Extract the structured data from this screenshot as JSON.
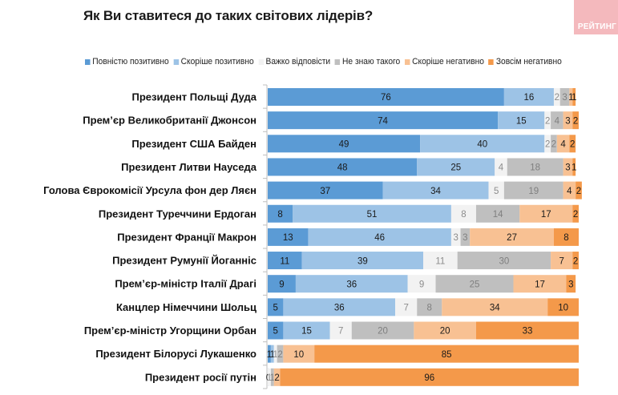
{
  "header": {
    "title": "Як Ви ставитеся до таких світових лідерів?",
    "logo_text": "РЕЙТИНГ"
  },
  "chart_data": {
    "type": "bar",
    "orientation": "horizontal",
    "stacked": true,
    "title": "Як Ви ставитеся до таких світових лідерів?",
    "xlabel": "",
    "ylabel": "",
    "xlim": [
      0,
      100
    ],
    "grid": false,
    "legend_position": "top",
    "categories": [
      "Президент Польщі Дуда",
      "Прем’єр Великобританії Джонсон",
      "Президент США Байден",
      "Президент Литви Науседа",
      "Голова Єврокомісії Урсула фон дер Ляєн",
      "Президент Туреччини Ердоган",
      "Президент Франції Макрон",
      "Президент Румунії Йоганніс",
      "Прем’єр-міністр Італії Драгі",
      "Канцлер Німеччини Шольц",
      "Прем’єр-міністр Угорщини Орбан",
      "Президент Білорусі Лукашенко",
      "Президент росії путін"
    ],
    "series": [
      {
        "name": "Повністю позитивно",
        "color": "#5b9bd5",
        "label_color": "#1a1a1a",
        "values": [
          76,
          74,
          49,
          48,
          37,
          8,
          13,
          11,
          9,
          5,
          5,
          1,
          0
        ]
      },
      {
        "name": "Скоріше позитивно",
        "color": "#9dc3e6",
        "label_color": "#1a1a1a",
        "values": [
          16,
          15,
          40,
          25,
          34,
          51,
          46,
          39,
          36,
          36,
          15,
          1,
          0
        ]
      },
      {
        "name": "Важко відповісти",
        "color": "#f2f2f2",
        "label_color": "#8c8c8c",
        "values": [
          2,
          2,
          2,
          4,
          5,
          8,
          3,
          11,
          9,
          7,
          7,
          1,
          1
        ]
      },
      {
        "name": "Не знаю такого",
        "color": "#bfbfbf",
        "label_color": "#7f7f7f",
        "values": [
          3,
          4,
          2,
          18,
          19,
          14,
          3,
          30,
          25,
          8,
          20,
          2,
          1
        ]
      },
      {
        "name": "Скоріше негативно",
        "color": "#f8c193",
        "label_color": "#1a1a1a",
        "values": [
          1,
          3,
          4,
          3,
          4,
          17,
          27,
          7,
          17,
          34,
          20,
          10,
          2
        ]
      },
      {
        "name": "Зовсім негативно",
        "color": "#f4994a",
        "label_color": "#1a1a1a",
        "values": [
          1,
          2,
          2,
          1,
          2,
          2,
          8,
          2,
          3,
          10,
          33,
          85,
          96
        ]
      }
    ]
  }
}
